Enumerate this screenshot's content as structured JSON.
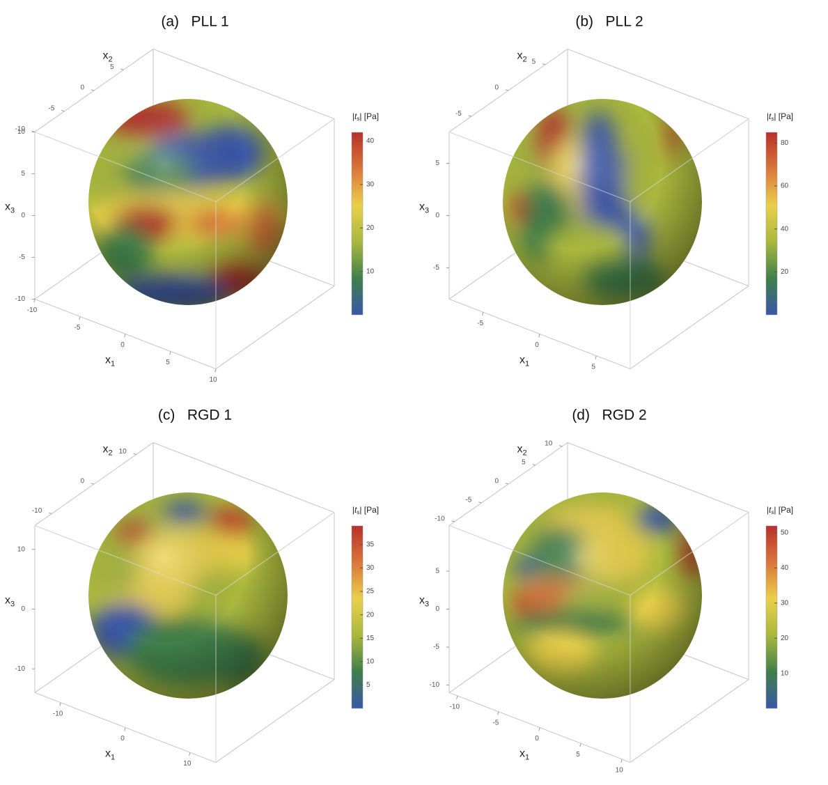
{
  "chart_data": [
    {
      "type": "surface3d",
      "title": "(a)   PLL 1",
      "xlabel": [
        "x",
        "1"
      ],
      "ylabel": [
        "x",
        "2"
      ],
      "zlabel": [
        "x",
        "3"
      ],
      "xlim": [
        -10,
        10
      ],
      "ylim": [
        -10,
        10
      ],
      "zlim": [
        -10,
        10
      ],
      "xticks": [
        -10,
        -5,
        0,
        5,
        10
      ],
      "yticks": [
        -10,
        -5,
        0,
        5
      ],
      "zticks": [
        -10,
        -5,
        0,
        5,
        10
      ],
      "colorbar_label": [
        "|",
        "t",
        "s",
        "| [Pa]"
      ],
      "clim": [
        0,
        42
      ],
      "cticks": [
        10,
        20,
        30,
        40
      ],
      "colormap": [
        "#3a57a8",
        "#3f7f4a",
        "#a9b83e",
        "#ead04a",
        "#d9763a",
        "#b8302b"
      ]
    },
    {
      "type": "surface3d",
      "title": "(b)   PLL 2",
      "xlabel": [
        "x",
        "1"
      ],
      "ylabel": [
        "x",
        "2"
      ],
      "zlabel": [
        "x",
        "3"
      ],
      "xlim": [
        -8,
        8
      ],
      "ylim": [
        -8,
        8
      ],
      "zlim": [
        -8,
        8
      ],
      "xticks": [
        -5,
        0,
        5
      ],
      "yticks": [
        -5,
        0,
        5
      ],
      "zticks": [
        -5,
        0,
        5
      ],
      "colorbar_label": [
        "|",
        "t",
        "s",
        "| [Pa]"
      ],
      "clim": [
        0,
        85
      ],
      "cticks": [
        20,
        40,
        60,
        80
      ],
      "colormap": [
        "#3a57a8",
        "#3f7f4a",
        "#a9b83e",
        "#ead04a",
        "#d9763a",
        "#b8302b"
      ]
    },
    {
      "type": "surface3d",
      "title": "(c)   RGD 1",
      "xlabel": [
        "x",
        "1"
      ],
      "ylabel": [
        "x",
        "2"
      ],
      "zlabel": [
        "x",
        "3"
      ],
      "xlim": [
        -14,
        14
      ],
      "ylim": [
        -14,
        14
      ],
      "zlim": [
        -14,
        14
      ],
      "xticks": [
        -10,
        0,
        10
      ],
      "yticks": [
        -10,
        0,
        10
      ],
      "zticks": [
        -10,
        0,
        10
      ],
      "colorbar_label": [
        "|",
        "t",
        "s",
        "| [Pa]"
      ],
      "clim": [
        0,
        39
      ],
      "cticks": [
        5,
        10,
        15,
        20,
        25,
        30,
        35
      ],
      "colormap": [
        "#3a57a8",
        "#3f7f4a",
        "#a9b83e",
        "#ead04a",
        "#d9763a",
        "#b8302b"
      ]
    },
    {
      "type": "surface3d",
      "title": "(d)   RGD 2",
      "xlabel": [
        "x",
        "1"
      ],
      "ylabel": [
        "x",
        "2"
      ],
      "zlabel": [
        "x",
        "3"
      ],
      "xlim": [
        -11,
        11
      ],
      "ylim": [
        -11,
        11
      ],
      "zlim": [
        -11,
        11
      ],
      "xticks": [
        -10,
        -5,
        0,
        5,
        10
      ],
      "yticks": [
        -10,
        -5,
        0,
        5,
        10
      ],
      "zticks": [
        -10,
        -5,
        0,
        5
      ],
      "colorbar_label": [
        "|",
        "t",
        "s",
        "| [Pa]"
      ],
      "clim": [
        0,
        52
      ],
      "cticks": [
        10,
        20,
        30,
        40,
        50
      ],
      "colormap": [
        "#3a57a8",
        "#3f7f4a",
        "#a9b83e",
        "#ead04a",
        "#d9763a",
        "#b8302b"
      ]
    }
  ]
}
